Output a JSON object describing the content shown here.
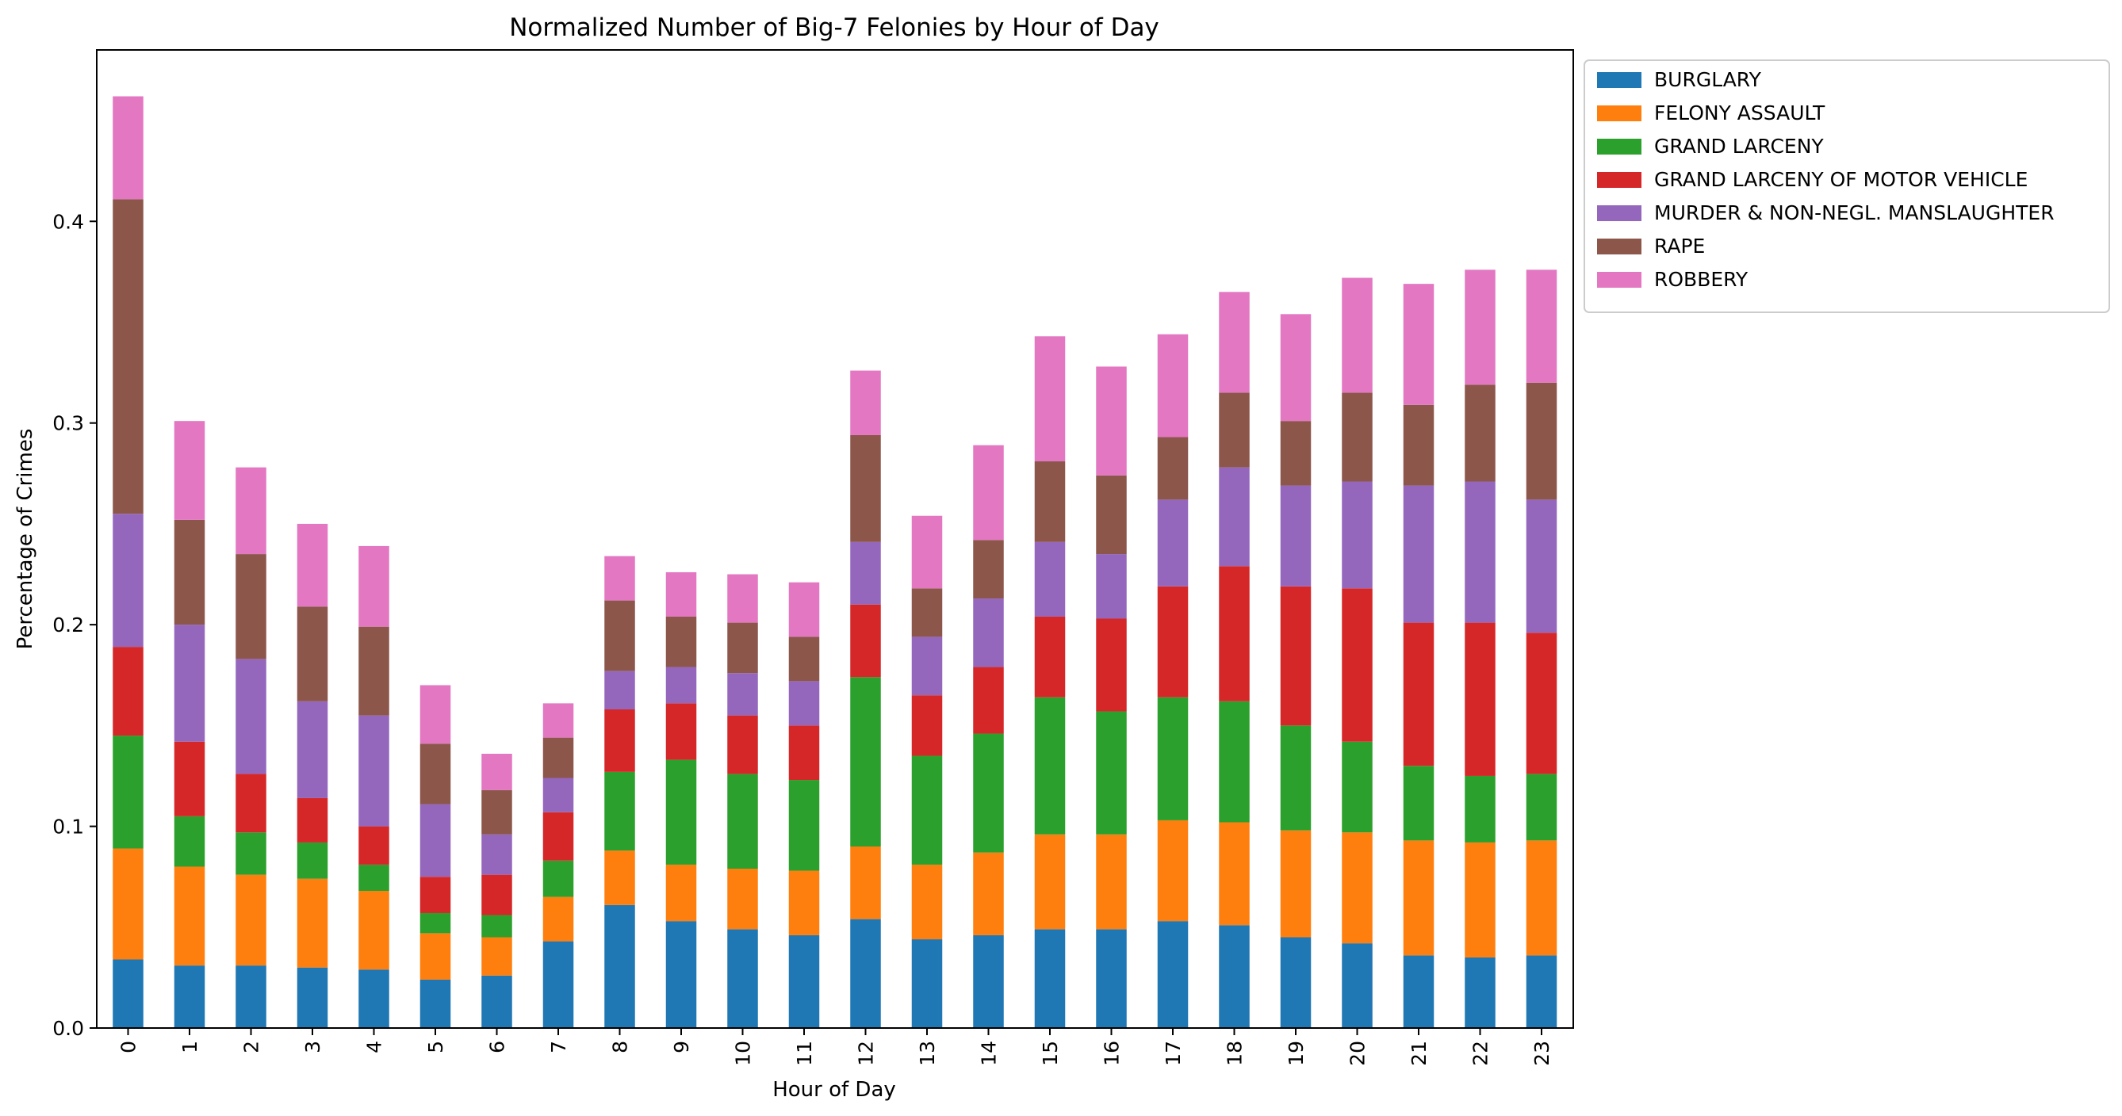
{
  "chart_data": {
    "type": "bar",
    "stacked": true,
    "title": "Normalized Number of Big-7 Felonies by Hour of Day",
    "xlabel": "Hour of Day",
    "ylabel": "Percentage of Crimes",
    "ylim": [
      0,
      0.485
    ],
    "yticks": [
      "0.0",
      "0.1",
      "0.2",
      "0.3",
      "0.4"
    ],
    "grid": false,
    "legend_position": "outside upper right",
    "categories": [
      "0",
      "1",
      "2",
      "3",
      "4",
      "5",
      "6",
      "7",
      "8",
      "9",
      "10",
      "11",
      "12",
      "13",
      "14",
      "15",
      "16",
      "17",
      "18",
      "19",
      "20",
      "21",
      "22",
      "23"
    ],
    "series": [
      {
        "name": "BURGLARY",
        "color": "#1f77b4",
        "values": [
          0.034,
          0.031,
          0.031,
          0.03,
          0.029,
          0.024,
          0.026,
          0.043,
          0.061,
          0.053,
          0.049,
          0.046,
          0.054,
          0.044,
          0.046,
          0.049,
          0.049,
          0.053,
          0.051,
          0.045,
          0.042,
          0.036,
          0.035,
          0.036
        ]
      },
      {
        "name": "FELONY ASSAULT",
        "color": "#ff7f0e",
        "values": [
          0.055,
          0.049,
          0.045,
          0.044,
          0.039,
          0.023,
          0.019,
          0.022,
          0.027,
          0.028,
          0.03,
          0.032,
          0.036,
          0.037,
          0.041,
          0.047,
          0.047,
          0.05,
          0.051,
          0.053,
          0.055,
          0.057,
          0.057,
          0.057
        ]
      },
      {
        "name": "GRAND LARCENY",
        "color": "#2ca02c",
        "values": [
          0.056,
          0.025,
          0.021,
          0.018,
          0.013,
          0.01,
          0.011,
          0.018,
          0.039,
          0.052,
          0.047,
          0.045,
          0.084,
          0.054,
          0.059,
          0.068,
          0.061,
          0.061,
          0.06,
          0.052,
          0.045,
          0.037,
          0.033,
          0.033
        ]
      },
      {
        "name": "GRAND LARCENY OF MOTOR VEHICLE",
        "color": "#d62728",
        "values": [
          0.044,
          0.037,
          0.029,
          0.022,
          0.019,
          0.018,
          0.02,
          0.024,
          0.031,
          0.028,
          0.029,
          0.027,
          0.036,
          0.03,
          0.033,
          0.04,
          0.046,
          0.055,
          0.067,
          0.069,
          0.076,
          0.071,
          0.076,
          0.07
        ]
      },
      {
        "name": "MURDER & NON-NEGL. MANSLAUGHTER",
        "color": "#9467bd",
        "values": [
          0.066,
          0.058,
          0.057,
          0.048,
          0.055,
          0.036,
          0.02,
          0.017,
          0.019,
          0.018,
          0.021,
          0.022,
          0.031,
          0.029,
          0.034,
          0.037,
          0.032,
          0.043,
          0.049,
          0.05,
          0.053,
          0.068,
          0.07,
          0.066
        ]
      },
      {
        "name": "RAPE",
        "color": "#8c564b",
        "values": [
          0.156,
          0.052,
          0.052,
          0.047,
          0.044,
          0.03,
          0.022,
          0.02,
          0.035,
          0.025,
          0.025,
          0.022,
          0.053,
          0.024,
          0.029,
          0.04,
          0.039,
          0.031,
          0.037,
          0.032,
          0.044,
          0.04,
          0.048,
          0.058
        ]
      },
      {
        "name": "ROBBERY",
        "color": "#e377c2",
        "values": [
          0.051,
          0.049,
          0.043,
          0.041,
          0.04,
          0.029,
          0.018,
          0.017,
          0.022,
          0.022,
          0.024,
          0.027,
          0.032,
          0.036,
          0.047,
          0.062,
          0.054,
          0.051,
          0.05,
          0.053,
          0.057,
          0.06,
          0.057,
          0.056
        ]
      }
    ]
  }
}
